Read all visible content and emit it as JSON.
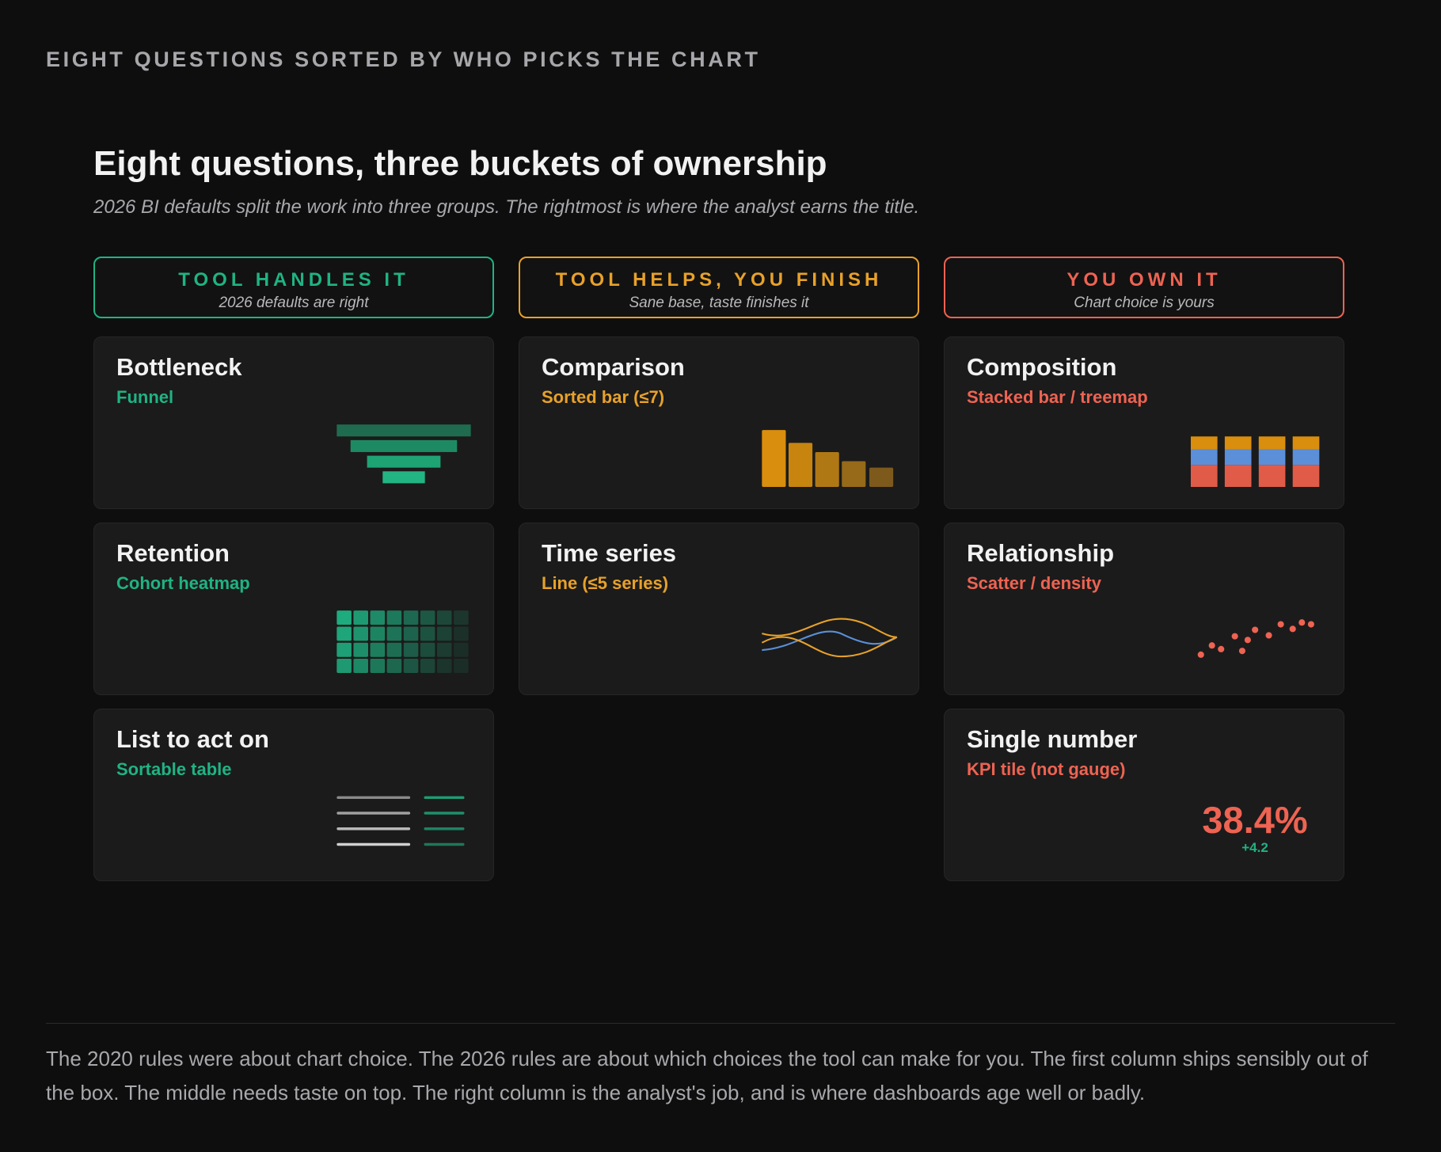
{
  "kicker": "EIGHT QUESTIONS SORTED BY WHO PICKS THE CHART",
  "title": "Eight questions, three buckets of ownership",
  "subtitle": "2026 BI defaults split the work into three groups. The rightmost is where the analyst earns the title.",
  "columns": [
    {
      "title": "TOOL HANDLES IT",
      "subtitle": "2026 defaults are right",
      "cards": [
        {
          "title": "Bottleneck",
          "chart": "Funnel"
        },
        {
          "title": "Retention",
          "chart": "Cohort heatmap"
        },
        {
          "title": "List to act on",
          "chart": "Sortable table"
        }
      ]
    },
    {
      "title": "TOOL HELPS, YOU FINISH",
      "subtitle": "Sane base, taste finishes it",
      "cards": [
        {
          "title": "Comparison",
          "chart": "Sorted bar (≤7)"
        },
        {
          "title": "Time series",
          "chart": "Line (≤5 series)"
        }
      ]
    },
    {
      "title": "YOU OWN IT",
      "subtitle": "Chart choice is yours",
      "cards": [
        {
          "title": "Composition",
          "chart": "Stacked bar / treemap"
        },
        {
          "title": "Relationship",
          "chart": "Scatter / density"
        },
        {
          "title": "Single number",
          "chart": "KPI tile (not gauge)",
          "kpi": {
            "value": "38.4%",
            "delta": "+4.2"
          }
        }
      ]
    }
  ],
  "footer": "The 2020 rules were about chart choice. The 2026 rules are about which choices the tool can make for you. The first column ships sensibly out of the box. The middle needs taste on top. The right column is the analyst's job, and is where dashboards age well or badly."
}
